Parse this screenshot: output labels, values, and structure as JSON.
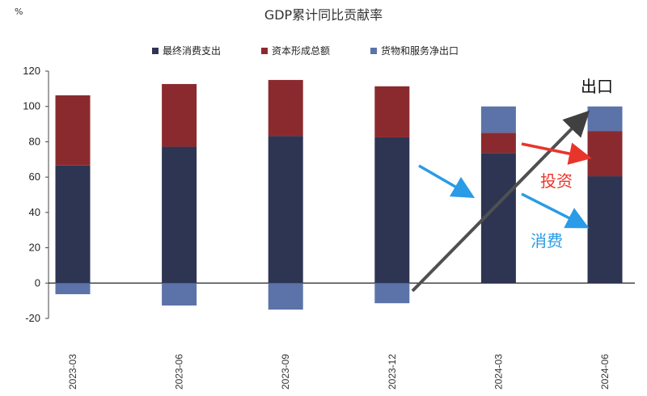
{
  "chart_data": {
    "type": "bar",
    "stacked": true,
    "title": "GDP累计同比贡献率",
    "unit": "%",
    "categories": [
      "2023-03",
      "2023-06",
      "2023-09",
      "2023-12",
      "2024-03",
      "2024-06"
    ],
    "series": [
      {
        "name": "最终消费支出",
        "color": "#2e3553",
        "values": [
          66.6,
          77.2,
          83.2,
          82.5,
          73.7,
          60.5
        ]
      },
      {
        "name": "资本形成总额",
        "color": "#8b2a2e",
        "values": [
          39.7,
          35.5,
          31.8,
          28.9,
          11.4,
          25.6
        ]
      },
      {
        "name": "货物和服务净出口",
        "color": "#5b73a8",
        "values": [
          -6.3,
          -12.7,
          -15.0,
          -11.4,
          14.9,
          13.9
        ]
      }
    ],
    "ylim": [
      -20,
      120
    ],
    "yticks": [
      -20,
      0,
      20,
      40,
      60,
      80,
      100,
      120
    ],
    "legend_position": "top",
    "annotations": [
      {
        "text": "出口",
        "color": "#111111"
      },
      {
        "text": "投资",
        "color": "#e8352b"
      },
      {
        "text": "消费",
        "color": "#2a9be6"
      }
    ]
  }
}
